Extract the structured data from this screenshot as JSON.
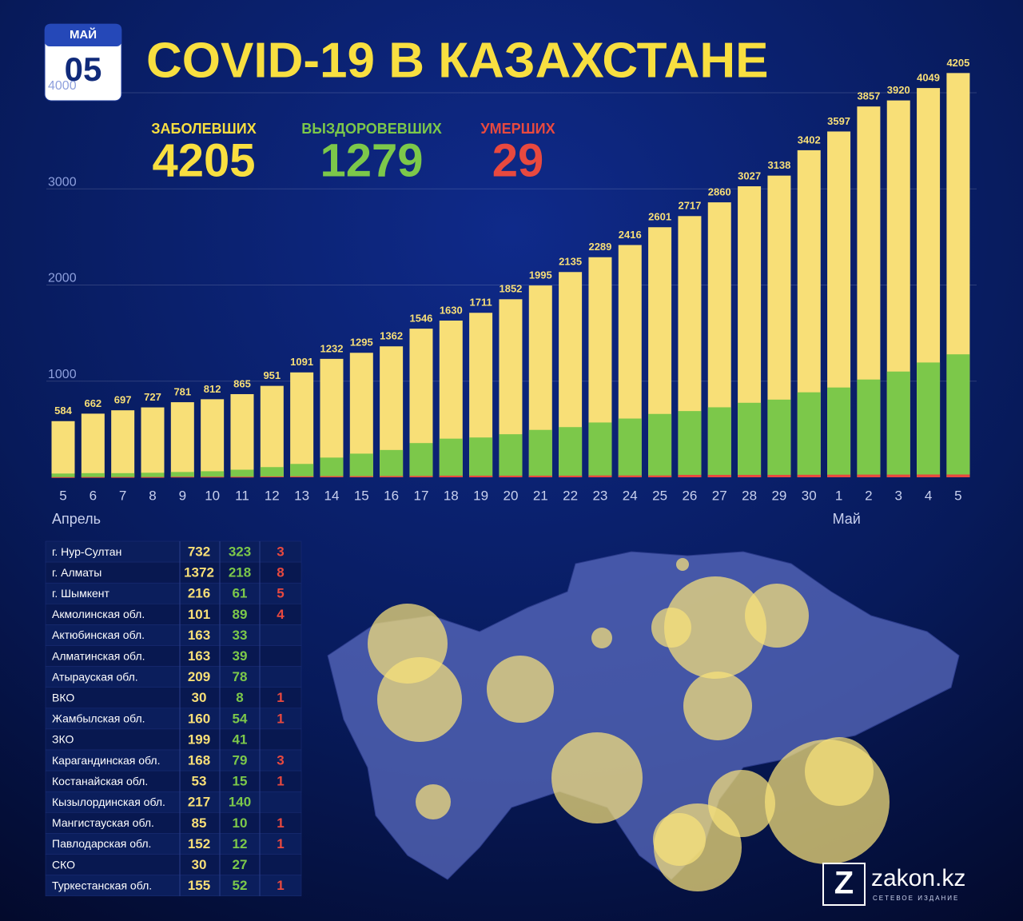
{
  "badge": {
    "month": "МАЙ",
    "day": "05"
  },
  "title": "COVID-19 В КАЗАХСТАНЕ",
  "stats": [
    4205,
    1279,
    29
  ],
  "chart_data": {
    "type": "bar",
    "barmode": "overlay",
    "categories": [
      "5",
      "6",
      "7",
      "8",
      "9",
      "10",
      "11",
      "12",
      "13",
      "14",
      "15",
      "16",
      "17",
      "18",
      "19",
      "20",
      "21",
      "22",
      "23",
      "24",
      "25",
      "26",
      "27",
      "28",
      "29",
      "30",
      "1",
      "2",
      "3",
      "4",
      "5"
    ],
    "months": [
      "Апрель",
      "Май"
    ],
    "series": [
      {
        "name": "ЗАБОЛЕВШИХ",
        "color": "#f8df77",
        "values": [
          584,
          662,
          697,
          727,
          781,
          812,
          865,
          951,
          1091,
          1232,
          1295,
          1362,
          1546,
          1630,
          1711,
          1852,
          1995,
          2135,
          2289,
          2416,
          2601,
          2717,
          2860,
          3027,
          3138,
          3402,
          3597,
          3857,
          3920,
          4049,
          4205
        ]
      },
      {
        "name": "ВЫЗДОРОВЕВШИХ",
        "color": "#7cc84a",
        "values": [
          39,
          43,
          43,
          47,
          55,
          63,
          79,
          106,
          139,
          205,
          246,
          284,
          356,
          402,
          414,
          448,
          493,
          522,
          570,
          611,
          659,
          689,
          728,
          775,
          808,
          884,
          934,
          1017,
          1100,
          1194,
          1279
        ]
      },
      {
        "name": "УМЕРШИХ",
        "color": "#e8493f",
        "values": [
          2,
          3,
          3,
          3,
          6,
          6,
          6,
          9,
          10,
          12,
          12,
          13,
          14,
          17,
          17,
          17,
          17,
          17,
          19,
          19,
          19,
          25,
          25,
          25,
          25,
          26,
          27,
          28,
          28,
          29,
          29
        ]
      }
    ],
    "ylim": [
      0,
      4300
    ],
    "yticks": [
      1000,
      2000,
      3000,
      4000
    ],
    "grid": true
  },
  "table": {
    "rows": [
      [
        "г. Нур-Султан",
        732,
        323,
        3
      ],
      [
        "г. Алматы",
        1372,
        218,
        8
      ],
      [
        "г. Шымкент",
        216,
        61,
        5
      ],
      [
        "Акмолинская обл.",
        101,
        89,
        4
      ],
      [
        "Актюбинская обл.",
        163,
        33,
        null
      ],
      [
        "Алматинская обл.",
        163,
        39,
        null
      ],
      [
        "Атырауская обл.",
        209,
        78,
        null
      ],
      [
        "ВКО",
        30,
        8,
        1
      ],
      [
        "Жамбылская обл.",
        160,
        54,
        1
      ],
      [
        "ЗКО",
        199,
        41,
        null
      ],
      [
        "Карагандинская обл.",
        168,
        79,
        3
      ],
      [
        "Костанайская обл.",
        53,
        15,
        1
      ],
      [
        "Кызылординская обл.",
        217,
        140,
        null
      ],
      [
        "Мангистауская обл.",
        85,
        10,
        1
      ],
      [
        "Павлодарская обл.",
        152,
        12,
        1
      ],
      [
        "СКО",
        30,
        27,
        null
      ],
      [
        "Туркестанская обл.",
        155,
        52,
        1
      ]
    ]
  },
  "logo": {
    "name": "zakon.kz",
    "tagline": "СЕТЕВОЕ ИЗДАНИЕ"
  }
}
